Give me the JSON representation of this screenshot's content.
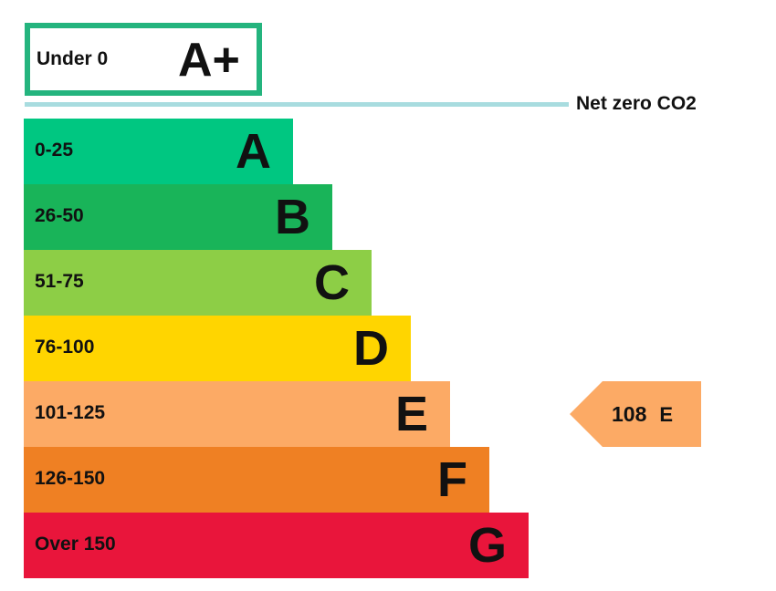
{
  "chart_data": {
    "type": "bar",
    "top_band": {
      "range": "Under 0",
      "letter": "A+",
      "color": "#24b47e"
    },
    "net_zero_label": "Net zero CO2",
    "bands": [
      {
        "range": "0-25",
        "letter": "A",
        "color": "#00c781"
      },
      {
        "range": "26-50",
        "letter": "B",
        "color": "#19b459"
      },
      {
        "range": "51-75",
        "letter": "C",
        "color": "#8dce46"
      },
      {
        "range": "76-100",
        "letter": "D",
        "color": "#ffd500"
      },
      {
        "range": "101-125",
        "letter": "E",
        "color": "#fcaa65"
      },
      {
        "range": "126-150",
        "letter": "F",
        "color": "#ef8023"
      },
      {
        "range": "Over 150",
        "letter": "G",
        "color": "#e9153b"
      }
    ],
    "current_rating": {
      "value": "108",
      "letter": "E",
      "color": "#fcaa65"
    }
  }
}
